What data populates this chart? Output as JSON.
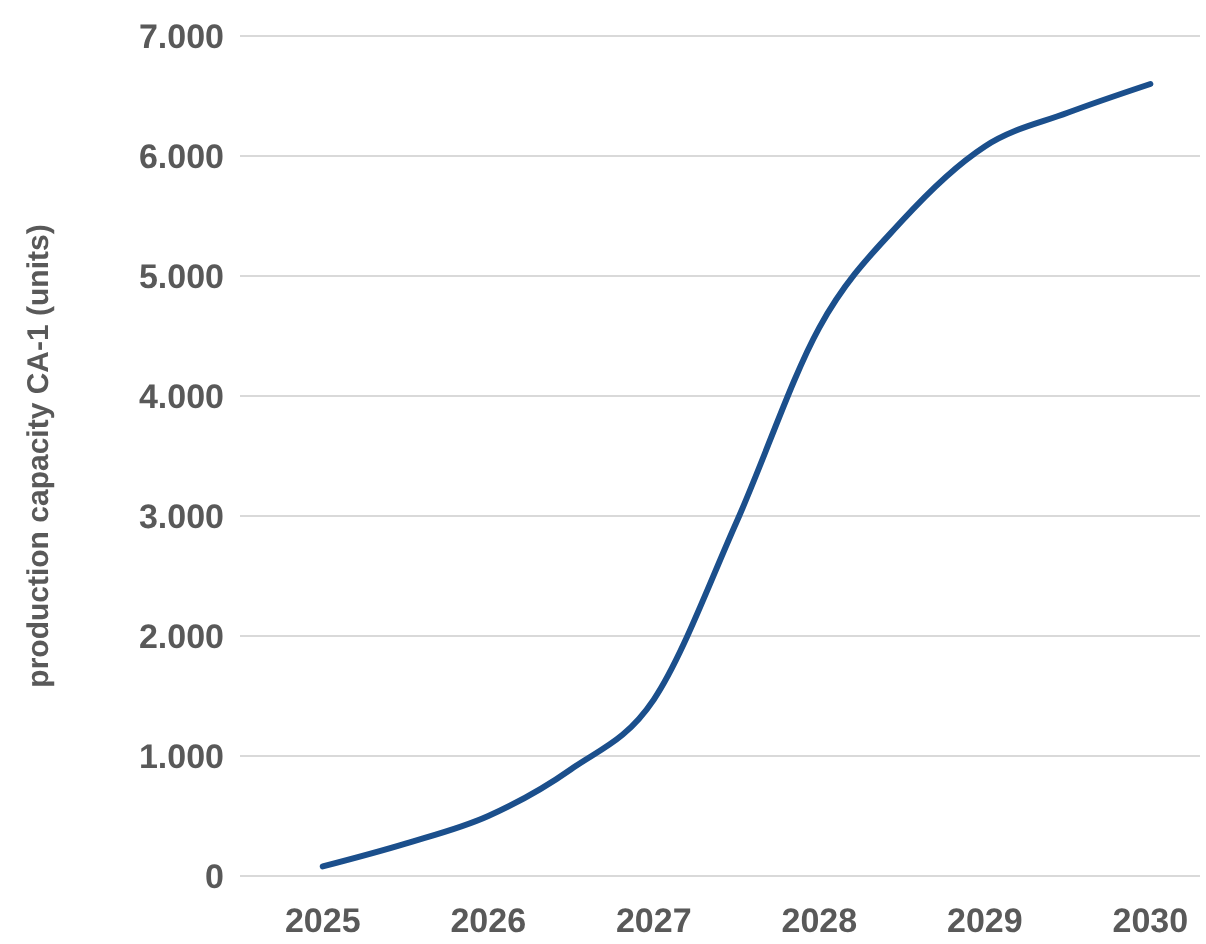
{
  "chart_data": {
    "type": "line",
    "ylabel": "production capacity CA-1 (units)",
    "x": [
      2025,
      2025.5,
      2026,
      2026.5,
      2027,
      2027.5,
      2028,
      2028.5,
      2029,
      2029.5,
      2030
    ],
    "series": [
      {
        "color": "#1b4f8c",
        "values": [
          80,
          270,
          500,
          890,
          1470,
          2950,
          4570,
          5460,
          6080,
          6360,
          6600
        ]
      }
    ],
    "xlim": [
      2024.5,
      2030.3
    ],
    "xticks": [
      2025,
      2026,
      2027,
      2028,
      2029,
      2030
    ],
    "ylim": [
      0,
      7000
    ],
    "yticks": [
      {
        "value": 0,
        "label": "0"
      },
      {
        "value": 1000,
        "label": "1.000"
      },
      {
        "value": 2000,
        "label": "2.000"
      },
      {
        "value": 3000,
        "label": "3.000"
      },
      {
        "value": 4000,
        "label": "4.000"
      },
      {
        "value": 5000,
        "label": "5.000"
      },
      {
        "value": 6000,
        "label": "6.000"
      },
      {
        "value": 7000,
        "label": "7.000"
      }
    ],
    "grid": "y",
    "marker": "none",
    "line_style": "solid"
  }
}
